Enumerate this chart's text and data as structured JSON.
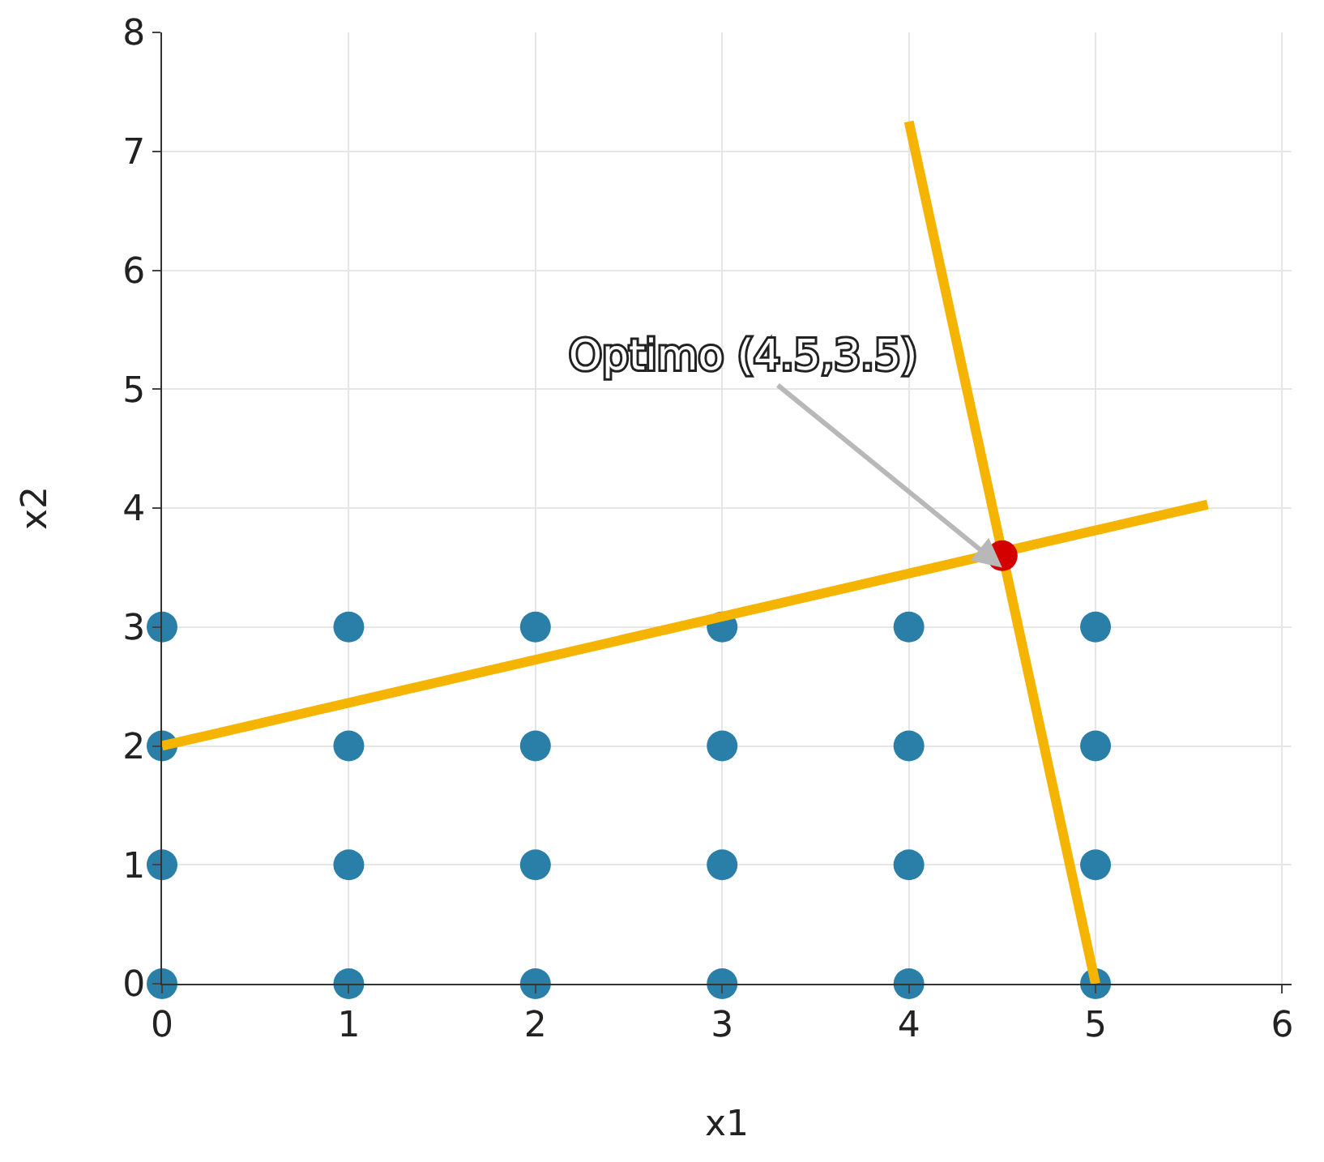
{
  "chart_data": {
    "type": "scatter",
    "xlabel": "x1",
    "ylabel": "x2",
    "xlim": [
      0,
      6.05
    ],
    "ylim": [
      0,
      8
    ],
    "xticks": [
      0,
      1,
      2,
      3,
      4,
      5,
      6
    ],
    "yticks": [
      0,
      1,
      2,
      3,
      4,
      5,
      6,
      7,
      8
    ],
    "grid": true,
    "legend": false,
    "marker": "circle",
    "series": [
      {
        "color": "#2a7fa8",
        "x": [
          0,
          1,
          2,
          3,
          4,
          5,
          0,
          1,
          2,
          3,
          4,
          5,
          0,
          1,
          2,
          3,
          4,
          5,
          0,
          1,
          2,
          3,
          4,
          5
        ],
        "values": [
          0,
          0,
          0,
          0,
          0,
          0,
          1,
          1,
          1,
          1,
          1,
          1,
          2,
          2,
          2,
          2,
          2,
          2,
          3,
          3,
          3,
          3,
          3,
          3
        ]
      },
      {
        "type": "line",
        "marker": "none",
        "color": "#f5b400",
        "x": [
          0,
          5.6
        ],
        "values": [
          2,
          4.03
        ]
      },
      {
        "type": "line",
        "marker": "none",
        "color": "#f5b400",
        "x": [
          4,
          5
        ],
        "values": [
          7.25,
          0
        ]
      },
      {
        "color": "#d40000",
        "x": [
          4.5
        ],
        "values": [
          3.6
        ]
      }
    ],
    "annotations": [
      {
        "text": "Optimo (4.5,3.5)",
        "x": 4.5,
        "y": 3.5
      }
    ]
  }
}
